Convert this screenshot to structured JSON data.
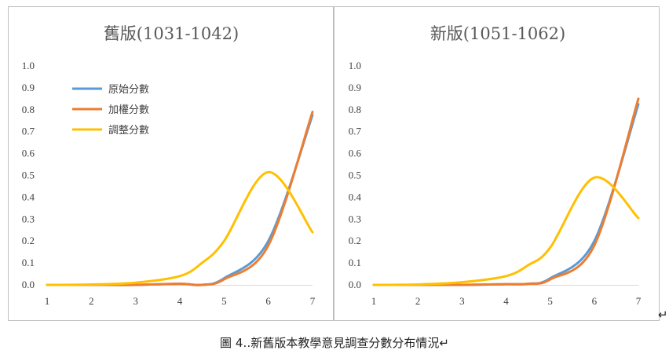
{
  "figure": {
    "caption": "圖 4‥新舊版本教學意見調查分數分布情況↵",
    "corner_mark": "↵"
  },
  "colors": {
    "original": "#5B9BD5",
    "weighted": "#ED7D31",
    "adjusted": "#FFC000",
    "panel_border": "#bfbfbf",
    "axis_line": "#d9d9d9",
    "text": "#404040"
  },
  "chart_data": [
    {
      "type": "line",
      "title": "舊版(1031-1042)",
      "xlabel": "",
      "ylabel": "",
      "x": [
        1,
        2,
        3,
        4,
        4.5,
        5,
        6,
        7
      ],
      "x_ticks": [
        "1",
        "2",
        "3",
        "4",
        "5",
        "6",
        "7"
      ],
      "y_ticks": [
        "0.0",
        "0.1",
        "0.2",
        "0.3",
        "0.4",
        "0.5",
        "0.6",
        "0.7",
        "0.8",
        "0.9",
        "1.0"
      ],
      "xlim": [
        1,
        7
      ],
      "ylim": [
        0,
        1.0
      ],
      "grid": false,
      "legend": "top-left",
      "series": [
        {
          "name": "原始分數",
          "color": "#5B9BD5",
          "values": [
            0.0,
            0.0,
            0.0,
            0.005,
            0.0,
            0.03,
            0.2,
            0.775
          ]
        },
        {
          "name": "加權分數",
          "color": "#ED7D31",
          "values": [
            0.0,
            0.0,
            0.0,
            0.005,
            0.0,
            0.025,
            0.18,
            0.79
          ]
        },
        {
          "name": "調整分數",
          "color": "#FFC000",
          "values": [
            0.0,
            0.002,
            0.01,
            0.04,
            0.1,
            0.2,
            0.515,
            0.24
          ]
        }
      ]
    },
    {
      "type": "line",
      "title": "新版(1051-1062)",
      "xlabel": "",
      "ylabel": "",
      "x": [
        1,
        2,
        3,
        4,
        4.5,
        5,
        6,
        7
      ],
      "x_ticks": [
        "1",
        "2",
        "3",
        "4",
        "5",
        "6",
        "7"
      ],
      "y_ticks": [
        "0.0",
        "0.1",
        "0.2",
        "0.3",
        "0.4",
        "0.5",
        "0.6",
        "0.7",
        "0.8",
        "0.9",
        "1.0"
      ],
      "xlim": [
        1,
        7
      ],
      "ylim": [
        0,
        1.0
      ],
      "grid": false,
      "legend": "none",
      "series": [
        {
          "name": "原始分數",
          "color": "#5B9BD5",
          "values": [
            0.0,
            0.0,
            0.0,
            0.003,
            0.005,
            0.03,
            0.2,
            0.825
          ]
        },
        {
          "name": "加權分數",
          "color": "#ED7D31",
          "values": [
            0.0,
            0.0,
            0.0,
            0.003,
            0.005,
            0.025,
            0.18,
            0.85
          ]
        },
        {
          "name": "調整分數",
          "color": "#FFC000",
          "values": [
            0.0,
            0.002,
            0.012,
            0.04,
            0.09,
            0.17,
            0.49,
            0.305
          ]
        }
      ]
    }
  ]
}
